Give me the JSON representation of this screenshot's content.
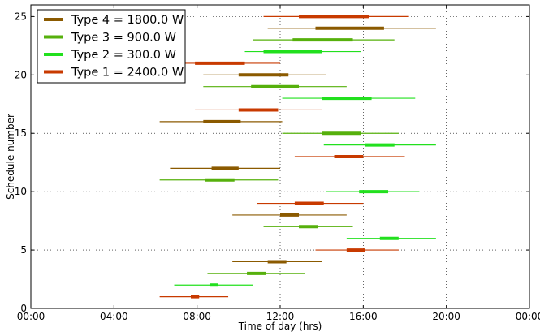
{
  "chart_data": {
    "type": "range-bar",
    "title": "",
    "xlabel": "Time of day (hrs)",
    "ylabel": "Schedule number",
    "xlim": [
      0,
      24
    ],
    "ylim": [
      0,
      26
    ],
    "x_ticks": [
      0,
      4,
      8,
      12,
      16,
      20,
      24
    ],
    "x_tick_labels": [
      "00:00",
      "04:00",
      "08:00",
      "12:00",
      "16:00",
      "20:00",
      "00:00"
    ],
    "y_ticks": [
      0,
      5,
      10,
      15,
      20,
      25
    ],
    "y_tick_labels": [
      "0",
      "5",
      "10",
      "15",
      "20",
      "25"
    ],
    "grid": true,
    "legend_position": "top-left",
    "series": [
      {
        "name": "Type 4 = 1800.0 W",
        "type_id": 4,
        "color": "#8b5a00"
      },
      {
        "name": "Type 3 = 900.0 W",
        "type_id": 3,
        "color": "#56b00c"
      },
      {
        "name": "Type 2 = 300.0 W",
        "type_id": 2,
        "color": "#22e01e"
      },
      {
        "name": "Type 1 = 2400.0 W",
        "type_id": 1,
        "color": "#c83a00"
      }
    ],
    "schedules": [
      {
        "y": 1,
        "type_id": 1,
        "window": [
          6.2,
          9.5
        ],
        "run": [
          7.7,
          8.1
        ]
      },
      {
        "y": 2,
        "type_id": 2,
        "window": [
          6.9,
          10.7
        ],
        "run": [
          8.6,
          9.0
        ]
      },
      {
        "y": 3,
        "type_id": 3,
        "window": [
          8.5,
          13.2
        ],
        "run": [
          10.4,
          11.3
        ]
      },
      {
        "y": 4,
        "type_id": 4,
        "window": [
          9.7,
          14.0
        ],
        "run": [
          11.4,
          12.3
        ]
      },
      {
        "y": 5,
        "type_id": 1,
        "window": [
          13.7,
          17.7
        ],
        "run": [
          15.2,
          16.1
        ]
      },
      {
        "y": 6,
        "type_id": 2,
        "window": [
          15.2,
          19.5
        ],
        "run": [
          16.8,
          17.7
        ]
      },
      {
        "y": 7,
        "type_id": 3,
        "window": [
          11.2,
          15.5
        ],
        "run": [
          12.9,
          13.8
        ]
      },
      {
        "y": 8,
        "type_id": 4,
        "window": [
          9.7,
          15.2
        ],
        "run": [
          12.0,
          12.9
        ]
      },
      {
        "y": 9,
        "type_id": 1,
        "window": [
          10.9,
          16.0
        ],
        "run": [
          12.7,
          14.1
        ]
      },
      {
        "y": 10,
        "type_id": 2,
        "window": [
          14.2,
          18.7
        ],
        "run": [
          15.8,
          17.2
        ]
      },
      {
        "y": 11,
        "type_id": 3,
        "window": [
          6.2,
          11.9
        ],
        "run": [
          8.4,
          9.8
        ]
      },
      {
        "y": 12,
        "type_id": 4,
        "window": [
          6.7,
          12.0
        ],
        "run": [
          8.7,
          10.0
        ]
      },
      {
        "y": 13,
        "type_id": 1,
        "window": [
          12.7,
          18.0
        ],
        "run": [
          14.6,
          16.0
        ]
      },
      {
        "y": 14,
        "type_id": 2,
        "window": [
          14.1,
          19.5
        ],
        "run": [
          16.1,
          17.5
        ]
      },
      {
        "y": 15,
        "type_id": 3,
        "window": [
          12.1,
          17.7
        ],
        "run": [
          14.0,
          15.9
        ]
      },
      {
        "y": 16,
        "type_id": 4,
        "window": [
          6.2,
          12.1
        ],
        "run": [
          8.3,
          10.1
        ]
      },
      {
        "y": 17,
        "type_id": 1,
        "window": [
          7.9,
          14.0
        ],
        "run": [
          10.0,
          11.9
        ]
      },
      {
        "y": 18,
        "type_id": 2,
        "window": [
          12.1,
          18.5
        ],
        "run": [
          14.0,
          16.4
        ]
      },
      {
        "y": 19,
        "type_id": 3,
        "window": [
          8.3,
          15.2
        ],
        "run": [
          10.6,
          12.9
        ]
      },
      {
        "y": 20,
        "type_id": 4,
        "window": [
          8.3,
          14.2
        ],
        "run": [
          10.0,
          12.4
        ]
      },
      {
        "y": 21,
        "type_id": 1,
        "window": [
          7.3,
          12.0
        ],
        "run": [
          7.9,
          10.3
        ]
      },
      {
        "y": 22,
        "type_id": 2,
        "window": [
          10.3,
          15.9
        ],
        "run": [
          11.2,
          14.0
        ]
      },
      {
        "y": 23,
        "type_id": 3,
        "window": [
          10.7,
          17.5
        ],
        "run": [
          12.6,
          15.5
        ]
      },
      {
        "y": 24,
        "type_id": 4,
        "window": [
          11.4,
          19.5
        ],
        "run": [
          13.7,
          17.0
        ]
      },
      {
        "y": 25,
        "type_id": 1,
        "window": [
          11.2,
          18.2
        ],
        "run": [
          12.9,
          16.3
        ]
      }
    ]
  }
}
